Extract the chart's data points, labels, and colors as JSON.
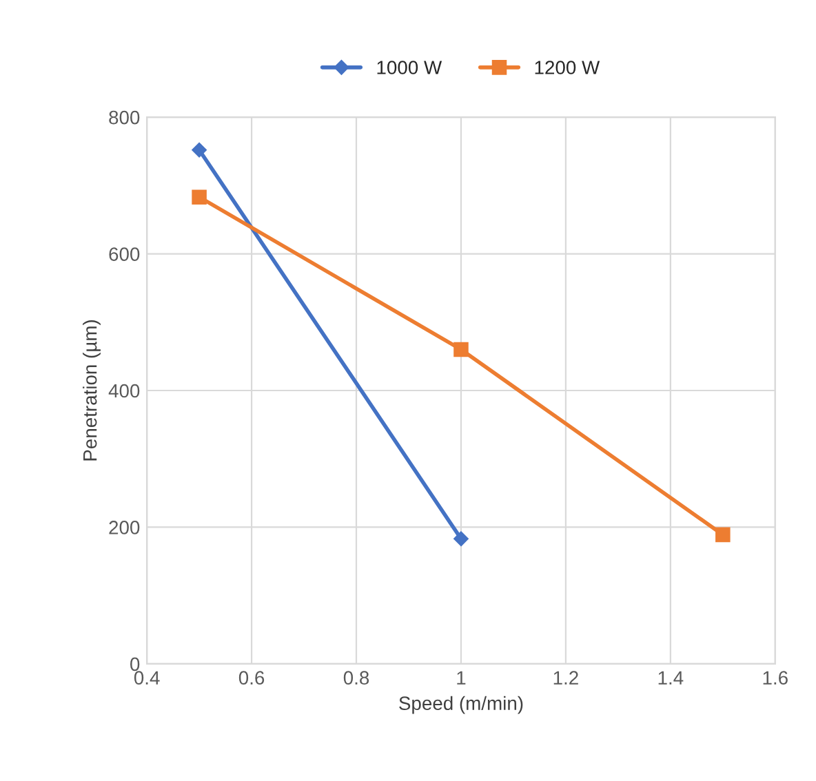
{
  "chart_data": {
    "type": "line",
    "xlabel": "Speed (m/min)",
    "ylabel": "Penetration (µm)",
    "xlim": [
      0.4,
      1.6
    ],
    "xticks": [
      0.4,
      0.6,
      0.8,
      1,
      1.2,
      1.4,
      1.6
    ],
    "ylim": [
      0,
      800
    ],
    "yticks": [
      0,
      200,
      400,
      600,
      800
    ],
    "grid": true,
    "legend": "top",
    "series": [
      {
        "name": "1000 W",
        "color": "#4472c4",
        "marker": "diamond",
        "x": [
          0.5,
          1.0
        ],
        "values": [
          752,
          183
        ]
      },
      {
        "name": "1200 W",
        "color": "#ed7d31",
        "marker": "square",
        "x": [
          0.5,
          1.0,
          1.5
        ],
        "values": [
          683,
          460,
          189
        ]
      }
    ]
  }
}
